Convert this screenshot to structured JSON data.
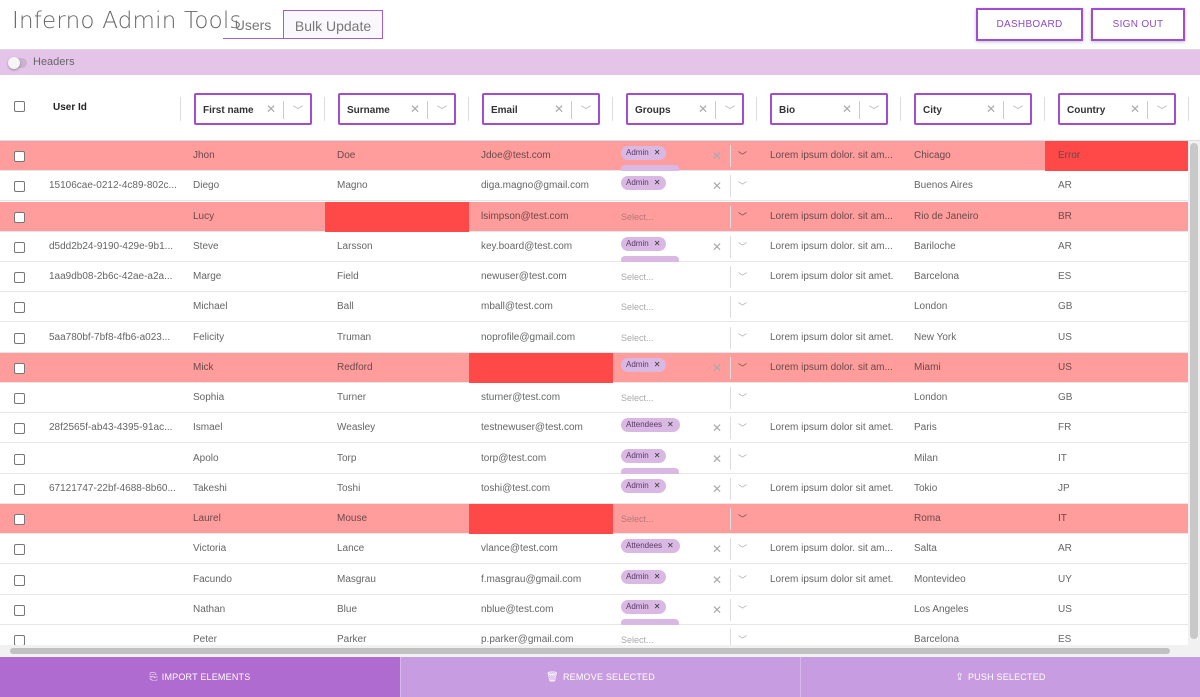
{
  "header": {
    "title": "Inferno Admin Tools",
    "tabs": [
      {
        "label": "Users"
      },
      {
        "label": "Bulk Update"
      }
    ],
    "dashboard_label": "DASHBOARD",
    "signout_label": "SIGN OUT"
  },
  "toggle": {
    "label": "Headers",
    "on": false
  },
  "columns": {
    "user_id": "User Id",
    "first_name": "First name",
    "surname": "Surname",
    "email": "Email",
    "groups": "Groups",
    "bio": "Bio",
    "city": "City",
    "country": "Country"
  },
  "groups_placeholder": "Select...",
  "rows": [
    {
      "id": "",
      "first": "Jhon",
      "surname": "Doe",
      "email": "Jdoe@test.com",
      "groups": [
        "Admin"
      ],
      "bio": "Lorem ipsum dolor. sit am...",
      "city": "Chicago",
      "country": "Error",
      "error": true
    },
    {
      "id": "15106cae-0212-4c89-802c...",
      "first": "Diego",
      "surname": "Magno",
      "email": "diga.magno@gmail.com",
      "groups": [
        "Admin"
      ],
      "bio": "",
      "city": "Buenos Aires",
      "country": "AR"
    },
    {
      "id": "",
      "first": "Lucy",
      "surname": "",
      "email": "lsimpson@test.com",
      "groups": [],
      "bio": "Lorem ipsum dolor. sit am...",
      "city": "Rio de Janeiro",
      "country": "BR",
      "error": true
    },
    {
      "id": "d5dd2b24-9190-429e-9b1...",
      "first": "Steve",
      "surname": "Larsson",
      "email": "key.board@test.com",
      "groups": [
        "Admin"
      ],
      "bio": "Lorem ipsum dolor. sit am...",
      "city": "Bariloche",
      "country": "AR"
    },
    {
      "id": "1aa9db08-2b6c-42ae-a2a...",
      "first": "Marge",
      "surname": "Field",
      "email": "newuser@test.com",
      "groups": [],
      "bio": "Lorem ipsum dolor sit amet.",
      "city": "Barcelona",
      "country": "ES"
    },
    {
      "id": "",
      "first": "Michael",
      "surname": "Ball",
      "email": "mball@test.com",
      "groups": [],
      "bio": "",
      "city": "London",
      "country": "GB"
    },
    {
      "id": "5aa780bf-7bf8-4fb6-a023...",
      "first": "Felicity",
      "surname": "Truman",
      "email": "noprofile@gmail.com",
      "groups": [],
      "bio": "Lorem ipsum dolor sit amet.",
      "city": "New York",
      "country": "US"
    },
    {
      "id": "",
      "first": "Mick",
      "surname": "Redford",
      "email": "",
      "groups": [
        "Admin"
      ],
      "bio": "Lorem ipsum dolor. sit am...",
      "city": "Miami",
      "country": "US",
      "error": true
    },
    {
      "id": "",
      "first": "Sophia",
      "surname": "Turner",
      "email": "sturner@test.com",
      "groups": [],
      "bio": "",
      "city": "London",
      "country": "GB"
    },
    {
      "id": "28f2565f-ab43-4395-91ac...",
      "first": "Ismael",
      "surname": "Weasley",
      "email": "testnewuser@test.com",
      "groups": [
        "Attendees"
      ],
      "bio": "Lorem ipsum dolor sit amet.",
      "city": "Paris",
      "country": "FR"
    },
    {
      "id": "",
      "first": "Apolo",
      "surname": "Torp",
      "email": "torp@test.com",
      "groups": [
        "Admin"
      ],
      "bio": "",
      "city": "Milan",
      "country": "IT"
    },
    {
      "id": "67121747-22bf-4688-8b60...",
      "first": "Takeshi",
      "surname": "Toshi",
      "email": "toshi@test.com",
      "groups": [
        "Admin"
      ],
      "bio": "Lorem ipsum dolor sit amet.",
      "city": "Tokio",
      "country": "JP"
    },
    {
      "id": "",
      "first": "Laurel",
      "surname": "Mouse",
      "email": "",
      "groups": [],
      "bio": "",
      "city": "Roma",
      "country": "IT",
      "error": true
    },
    {
      "id": "",
      "first": "Victoria",
      "surname": "Lance",
      "email": "vlance@test.com",
      "groups": [
        "Attendees"
      ],
      "bio": "Lorem ipsum dolor. sit am...",
      "city": "Salta",
      "country": "AR"
    },
    {
      "id": "",
      "first": "Facundo",
      "surname": "Masgrau",
      "email": "f.masgrau@gmail.com",
      "groups": [
        "Admin"
      ],
      "bio": "Lorem ipsum dolor sit amet.",
      "city": "Montevideo",
      "country": "UY"
    },
    {
      "id": "",
      "first": "Nathan",
      "surname": "Blue",
      "email": "nblue@test.com",
      "groups": [
        "Admin"
      ],
      "bio": "",
      "city": "Los Angeles",
      "country": "US"
    },
    {
      "id": "",
      "first": "Peter",
      "surname": "Parker",
      "email": "p.parker@gmail.com",
      "groups": [],
      "bio": "",
      "city": "Barcelona",
      "country": "ES"
    }
  ],
  "footer": {
    "import_label": "IMPORT ELEMENTS",
    "remove_label": "REMOVE SELECTED",
    "push_label": "PUSH SELECTED"
  },
  "colors": {
    "accent": "#a14dd1",
    "error_row": "#ff9c9c",
    "error_cell": "#ff4848",
    "chip": "#d9b8e4",
    "footer_primary": "#b06bd0",
    "footer_secondary": "#c89ce0"
  }
}
